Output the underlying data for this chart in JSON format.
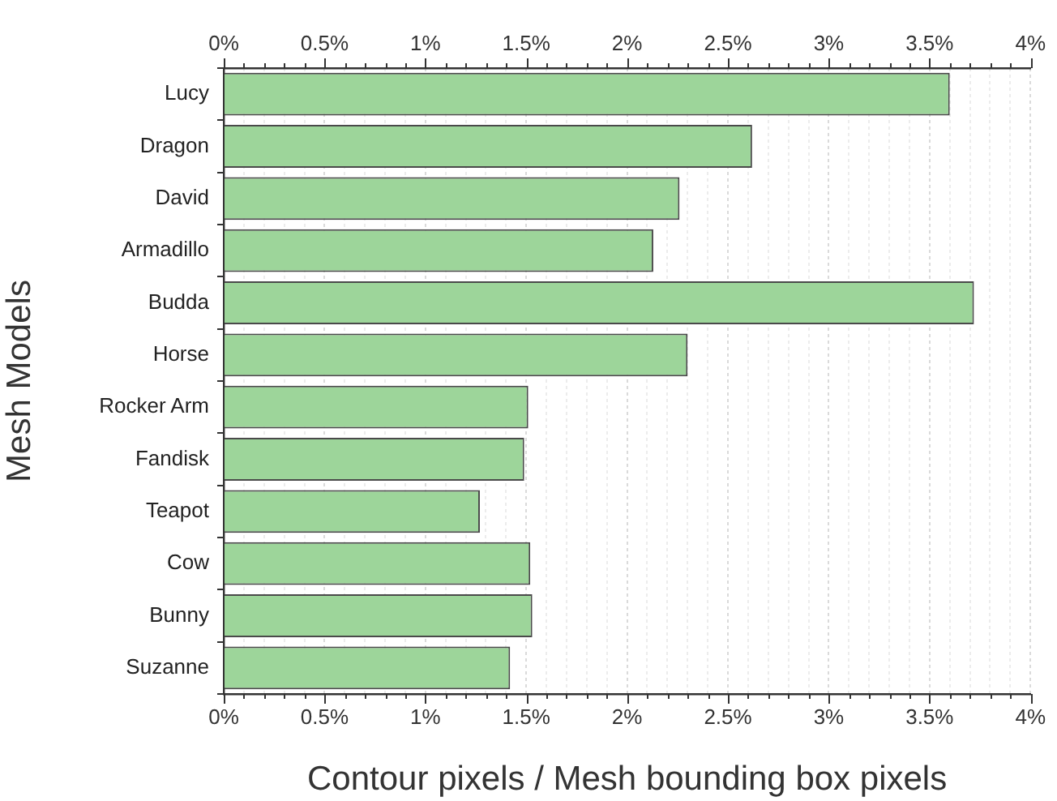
{
  "chart_data": {
    "type": "bar",
    "orientation": "horizontal",
    "xlabel": "Contour pixels / Mesh bounding box pixels",
    "ylabel": "Mesh Models",
    "color": "#9dd59a",
    "grid": "x",
    "categories": [
      "Lucy",
      "Dragon",
      "David",
      "Armadillo",
      "Budda",
      "Horse",
      "Rocker Arm",
      "Fandisk",
      "Teapot",
      "Cow",
      "Bunny",
      "Suzanne"
    ],
    "values": [
      3.6,
      2.62,
      2.26,
      2.13,
      3.72,
      2.3,
      1.51,
      1.49,
      1.27,
      1.52,
      1.53,
      1.42
    ],
    "xlim": [
      0,
      4
    ],
    "xticks": [
      {
        "value": 0,
        "label": "0%"
      },
      {
        "value": 0.1,
        "label": null
      },
      {
        "value": 0.2,
        "label": null
      },
      {
        "value": 0.3,
        "label": null
      },
      {
        "value": 0.4,
        "label": null
      },
      {
        "value": 0.5,
        "label": "0.5%"
      },
      {
        "value": 0.6,
        "label": null
      },
      {
        "value": 0.7,
        "label": null
      },
      {
        "value": 0.8,
        "label": null
      },
      {
        "value": 0.9,
        "label": null
      },
      {
        "value": 1,
        "label": "1%"
      },
      {
        "value": 1.1,
        "label": null
      },
      {
        "value": 1.2,
        "label": null
      },
      {
        "value": 1.3,
        "label": null
      },
      {
        "value": 1.4,
        "label": null
      },
      {
        "value": 1.5,
        "label": "1.5%"
      },
      {
        "value": 1.6,
        "label": null
      },
      {
        "value": 1.7,
        "label": null
      },
      {
        "value": 1.8,
        "label": null
      },
      {
        "value": 1.9,
        "label": null
      },
      {
        "value": 2,
        "label": "2%"
      },
      {
        "value": 2.1,
        "label": null
      },
      {
        "value": 2.2,
        "label": null
      },
      {
        "value": 2.3,
        "label": null
      },
      {
        "value": 2.4,
        "label": null
      },
      {
        "value": 2.5,
        "label": "2.5%"
      },
      {
        "value": 2.6,
        "label": null
      },
      {
        "value": 2.7,
        "label": null
      },
      {
        "value": 2.8,
        "label": null
      },
      {
        "value": 2.9,
        "label": null
      },
      {
        "value": 3,
        "label": "3%"
      },
      {
        "value": 3.1,
        "label": null
      },
      {
        "value": 3.2,
        "label": null
      },
      {
        "value": 3.3,
        "label": null
      },
      {
        "value": 3.4,
        "label": null
      },
      {
        "value": 3.5,
        "label": "3.5%"
      },
      {
        "value": 3.6,
        "label": null
      },
      {
        "value": 3.7,
        "label": null
      },
      {
        "value": 3.8,
        "label": null
      },
      {
        "value": 3.9,
        "label": null
      },
      {
        "value": 4,
        "label": "4%"
      }
    ],
    "x2lim": [
      0,
      4
    ],
    "x2ticks": [
      {
        "value": 0,
        "label": "0%"
      },
      {
        "value": 0.1,
        "label": null
      },
      {
        "value": 0.2,
        "label": null
      },
      {
        "value": 0.3,
        "label": null
      },
      {
        "value": 0.4,
        "label": null
      },
      {
        "value": 0.5,
        "label": "0.5%"
      },
      {
        "value": 0.6,
        "label": null
      },
      {
        "value": 0.7,
        "label": null
      },
      {
        "value": 0.8,
        "label": null
      },
      {
        "value": 0.9,
        "label": null
      },
      {
        "value": 1,
        "label": "1%"
      },
      {
        "value": 1.1,
        "label": null
      },
      {
        "value": 1.2,
        "label": null
      },
      {
        "value": 1.3,
        "label": null
      },
      {
        "value": 1.4,
        "label": null
      },
      {
        "value": 1.5,
        "label": "1.5%"
      },
      {
        "value": 1.6,
        "label": null
      },
      {
        "value": 1.7,
        "label": null
      },
      {
        "value": 1.8,
        "label": null
      },
      {
        "value": 1.9,
        "label": null
      },
      {
        "value": 2,
        "label": "2%"
      },
      {
        "value": 2.1,
        "label": null
      },
      {
        "value": 2.2,
        "label": null
      },
      {
        "value": 2.3,
        "label": null
      },
      {
        "value": 2.4,
        "label": null
      },
      {
        "value": 2.5,
        "label": "2.5%"
      },
      {
        "value": 2.6,
        "label": null
      },
      {
        "value": 2.7,
        "label": null
      },
      {
        "value": 2.8,
        "label": null
      },
      {
        "value": 2.9,
        "label": null
      },
      {
        "value": 3,
        "label": "3%"
      },
      {
        "value": 3.1,
        "label": null
      },
      {
        "value": 3.2,
        "label": null
      },
      {
        "value": 3.3,
        "label": null
      },
      {
        "value": 3.4,
        "label": null
      },
      {
        "value": 3.5,
        "label": "3.5%"
      },
      {
        "value": 3.6,
        "label": null
      },
      {
        "value": 3.7,
        "label": null
      },
      {
        "value": 3.8,
        "label": null
      },
      {
        "value": 3.9,
        "label": null
      },
      {
        "value": 4,
        "label": "4%"
      }
    ]
  }
}
